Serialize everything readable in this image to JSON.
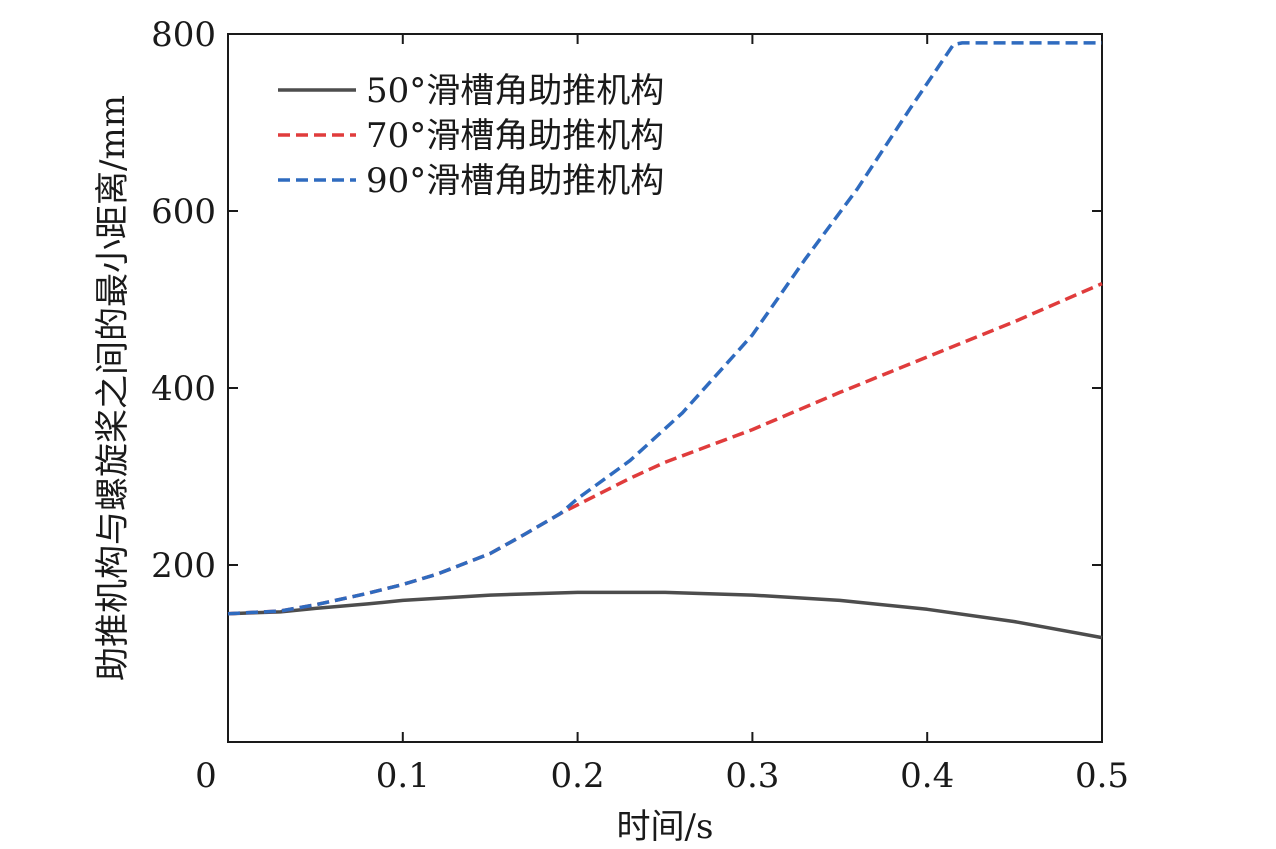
{
  "chart_data": {
    "type": "line",
    "xlabel": "时间/s",
    "ylabel": "助推机构与螺旋桨之间的最小距离/mm",
    "xlim": [
      0,
      0.5
    ],
    "ylim": [
      0,
      800
    ],
    "xticks": [
      0,
      0.1,
      0.2,
      0.3,
      0.4,
      0.5
    ],
    "xtick_labels": [
      "0",
      "0.1",
      "0.2",
      "0.3",
      "0.4",
      "0.5"
    ],
    "yticks": [
      200,
      400,
      600,
      800
    ],
    "ytick_labels": [
      "200",
      "400",
      "600",
      "800"
    ],
    "grid": false,
    "legend_position": "top-left",
    "series": [
      {
        "name": "50°滑槽角助推机构",
        "color": "#4d4d4d",
        "style": "solid",
        "x": [
          0,
          0.03,
          0.05,
          0.08,
          0.1,
          0.15,
          0.2,
          0.25,
          0.3,
          0.35,
          0.4,
          0.45,
          0.5
        ],
        "y": [
          145,
          147,
          151,
          156,
          160,
          166,
          169,
          169,
          166,
          160,
          150,
          136,
          118
        ]
      },
      {
        "name": "70°滑槽角助推机构",
        "color": "#e03c3c",
        "style": "dashed",
        "x": [
          0,
          0.03,
          0.05,
          0.08,
          0.1,
          0.12,
          0.15,
          0.17,
          0.19,
          0.2,
          0.23,
          0.25,
          0.3,
          0.35,
          0.4,
          0.45,
          0.5
        ],
        "y": [
          145,
          148,
          155,
          168,
          178,
          190,
          213,
          235,
          258,
          268,
          298,
          316,
          353,
          395,
          435,
          475,
          518
        ]
      },
      {
        "name": "90°滑槽角助推机构",
        "color": "#2f6bbf",
        "style": "dashed",
        "x": [
          0,
          0.03,
          0.05,
          0.08,
          0.1,
          0.12,
          0.15,
          0.17,
          0.19,
          0.2,
          0.23,
          0.26,
          0.3,
          0.33,
          0.36,
          0.39,
          0.415,
          0.42,
          0.45,
          0.5
        ],
        "y": [
          145,
          148,
          155,
          168,
          178,
          190,
          213,
          235,
          258,
          275,
          318,
          372,
          460,
          545,
          625,
          715,
          788,
          790,
          790,
          790
        ]
      }
    ]
  }
}
